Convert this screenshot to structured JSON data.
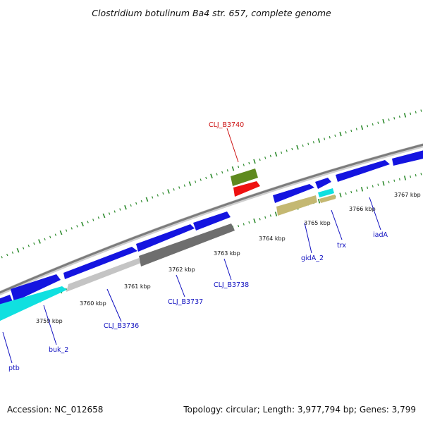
{
  "title": "Clostridium botulinum Ba4 str. 657, complete genome",
  "footer": {
    "accession": "Accession: NC_012658",
    "summary": "Topology: circular; Length: 3,977,794 bp; Genes: 3,799"
  },
  "colors": {
    "backbone": "#8a8a8a",
    "tick_mark": "#2e8b2e",
    "forward_gene": "#1414e0",
    "label_blue": "#1010c0",
    "label_red": "#cc1010",
    "olive": "#5f8a1f",
    "red_gene": "#ee1111",
    "cyan_gene": "#10e0e0",
    "khaki_gene": "#c4b872",
    "light_gray_gene": "#c4c4c4",
    "dark_gray_gene": "#6e6e6e"
  },
  "scale_labels": [
    "3759 kbp",
    "3760 kbp",
    "3761 kbp",
    "3762 kbp",
    "3763 kbp",
    "3764 kbp",
    "3765 kbp",
    "3766 kbp",
    "3767 kbp"
  ],
  "gene_labels": [
    {
      "name": "CLJ_B3740",
      "color": "red"
    },
    {
      "name": "CLJ_B3738",
      "color": "blue"
    },
    {
      "name": "CLJ_B3737",
      "color": "blue"
    },
    {
      "name": "CLJ_B3736",
      "color": "blue"
    },
    {
      "name": "gidA_2",
      "color": "blue"
    },
    {
      "name": "trx",
      "color": "blue"
    },
    {
      "name": "iadA",
      "color": "blue"
    },
    {
      "name": "buk_2",
      "color": "blue"
    },
    {
      "name": "ptb",
      "color": "blue"
    }
  ]
}
